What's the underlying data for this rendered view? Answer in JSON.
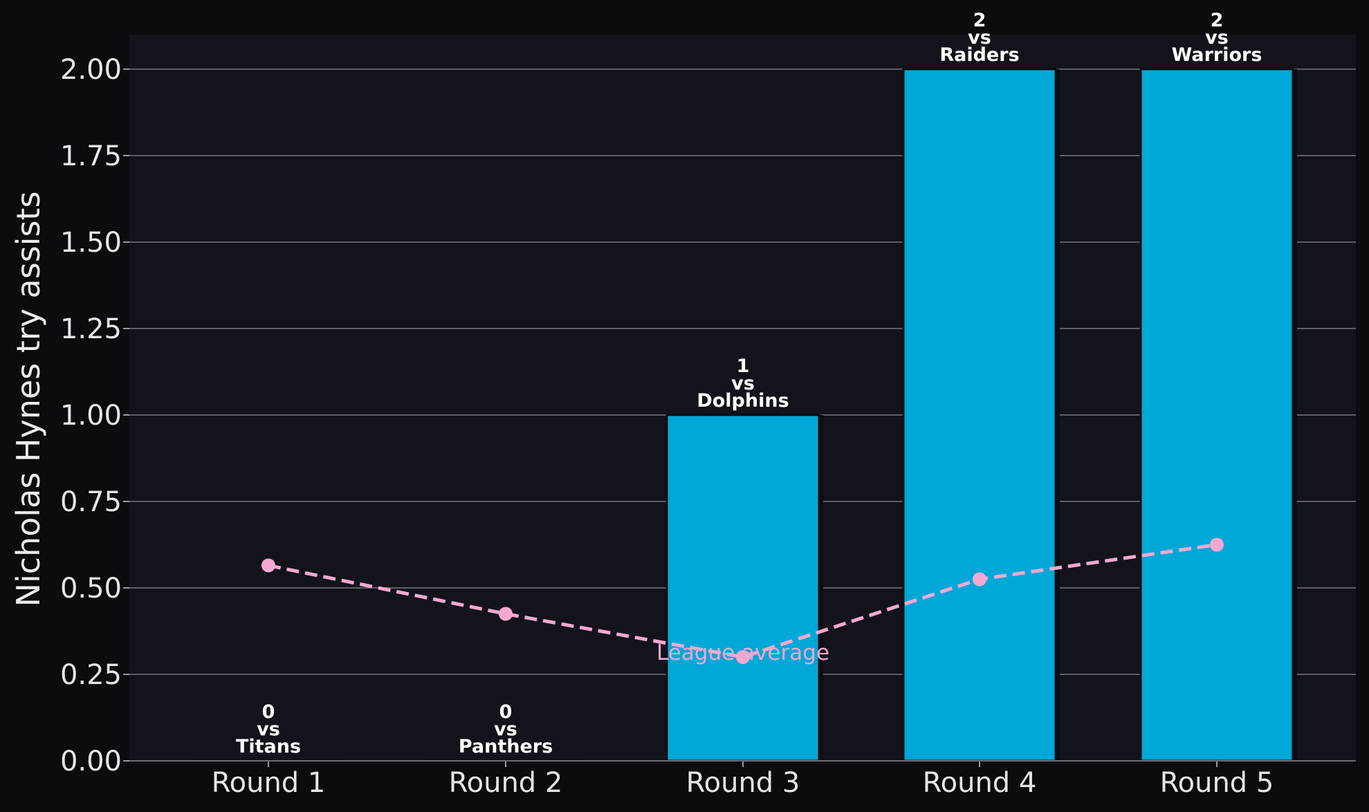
{
  "chart_data": {
    "type": "bar",
    "categories": [
      "Round 1",
      "Round 2",
      "Round 3",
      "Round 4",
      "Round 5"
    ],
    "values": [
      0,
      0,
      1,
      2,
      2
    ],
    "opponents": [
      "Titans",
      "Panthers",
      "Dolphins",
      "Raiders",
      "Warriors"
    ],
    "vs_text": "vs",
    "line_series": {
      "label": "League average",
      "values": [
        0.565,
        0.425,
        0.3,
        0.525,
        0.625
      ]
    },
    "ylabel": "Nicholas Hynes try assists",
    "xlabel": "",
    "ylim": [
      0,
      2.1
    ],
    "yticks": [
      "0.00",
      "0.25",
      "0.50",
      "0.75",
      "1.00",
      "1.25",
      "1.50",
      "1.75",
      "2.00"
    ],
    "grid": "horizontal",
    "colors": {
      "background": "#0b0b10",
      "plot_background": "#13131b",
      "bar": "#00a8d8",
      "line": "#f5a9d2",
      "grid": "#5e5e66"
    }
  }
}
